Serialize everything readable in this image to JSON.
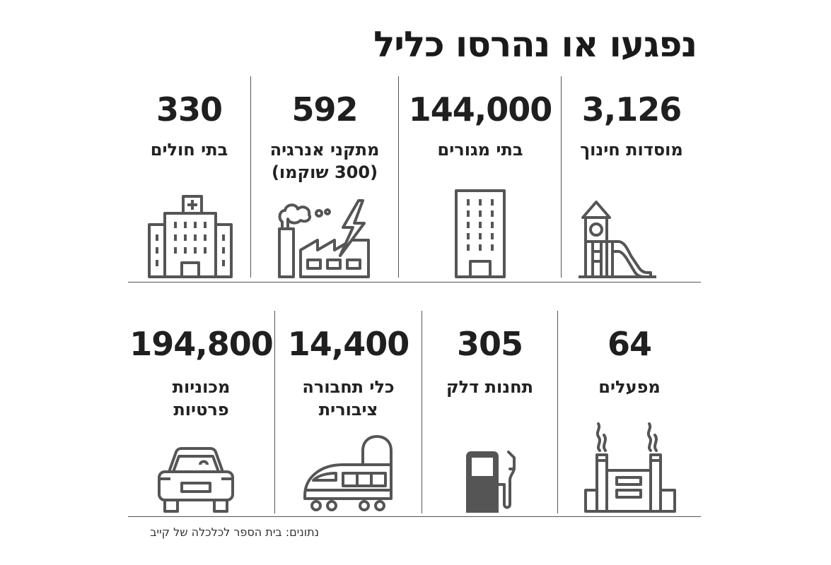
{
  "title": "נפגעו או נהרסו כליל",
  "row1": [
    {
      "value": "3,126",
      "label1": "מוסדות חינוך",
      "label2": "",
      "icon": "playground-icon"
    },
    {
      "value": "144,000",
      "label1": "בתי מגורים",
      "label2": "",
      "icon": "apartment-building-icon"
    },
    {
      "value": "592",
      "label1": "מתקני אנרגיה",
      "label2": "(300 שוקמו)",
      "icon": "power-plant-icon"
    },
    {
      "value": "330",
      "label1": "בתי חולים",
      "label2": "",
      "icon": "hospital-icon"
    }
  ],
  "row2": [
    {
      "value": "64",
      "label1": "מפעלים",
      "label2": "",
      "icon": "factory-icon"
    },
    {
      "value": "305",
      "label1": "תחנות דלק",
      "label2": "",
      "icon": "fuel-pump-icon"
    },
    {
      "value": "14,400",
      "label1": "כלי תחבורה",
      "label2": "ציבורית",
      "icon": "train-icon"
    },
    {
      "value": "194,800",
      "label1": "מכוניות",
      "label2": "פרטיות",
      "icon": "car-icon"
    }
  ],
  "source": "נתונים: בית הספר לכלכלה של קייב",
  "colors": {
    "text": "#1f1f1f",
    "icon": "#555555",
    "divider": "#555555"
  }
}
